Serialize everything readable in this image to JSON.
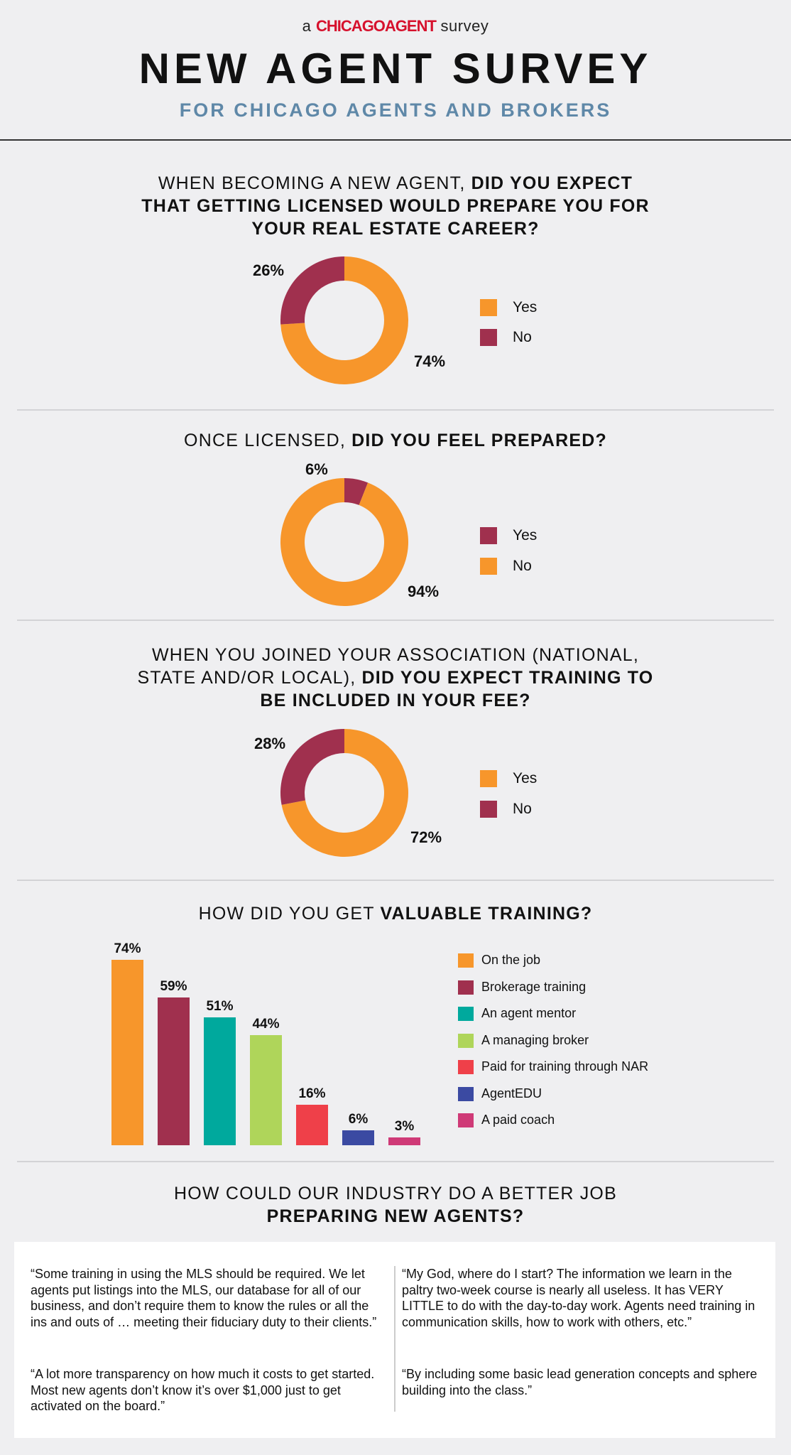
{
  "header": {
    "tagline_pre": "a",
    "brand": "CHICAGOAGENT",
    "tagline_post": "survey",
    "title": "NEW AGENT SURVEY",
    "subtitle": "FOR CHICAGO AGENTS AND BROKERS"
  },
  "questions": [
    {
      "line1_normal": "WHEN BECOMING A NEW AGENT, ",
      "line1_bold": "DID YOU EXPECT",
      "line2_bold": "THAT GETTING LICENSED WOULD PREPARE YOU FOR",
      "line3_bold": "YOUR REAL ESTATE CAREER?"
    },
    {
      "line1_normal": "ONCE LICENSED, ",
      "line1_bold": "DID YOU FEEL PREPARED?"
    },
    {
      "line1_normal": "WHEN YOU JOINED YOUR ASSOCIATION (NATIONAL,",
      "line2_normal": "STATE AND/OR LOCAL), ",
      "line2_bold": "DID YOU EXPECT TRAINING TO",
      "line3_bold": "BE INCLUDED IN YOUR FEE?"
    },
    {
      "line1_normal": "HOW DID YOU GET ",
      "line1_bold": "VALUABLE TRAINING?"
    },
    {
      "line1_normal": "HOW COULD OUR INDUSTRY DO A BETTER JOB",
      "line2_bold": "PREPARING NEW AGENTS?"
    }
  ],
  "colors": {
    "orange": "#f7962b",
    "maroon": "#a0304e",
    "teal": "#00a99d",
    "lime": "#afd55a",
    "red": "#ef4049",
    "navy": "#3b4aa2",
    "magenta": "#cf3a77"
  },
  "chart_data": [
    {
      "type": "pie",
      "donut": true,
      "labels": [
        "Yes",
        "No"
      ],
      "values": [
        74,
        26
      ],
      "value_labels": [
        "74%",
        "26%"
      ],
      "colors": [
        "#f7962b",
        "#a0304e"
      ],
      "legend": "right"
    },
    {
      "type": "pie",
      "donut": true,
      "labels": [
        "Yes",
        "No"
      ],
      "values": [
        6,
        94
      ],
      "value_labels": [
        "6%",
        "94%"
      ],
      "colors": [
        "#a0304e",
        "#f7962b"
      ],
      "legend": "right"
    },
    {
      "type": "pie",
      "donut": true,
      "labels": [
        "Yes",
        "No"
      ],
      "values": [
        72,
        28
      ],
      "value_labels": [
        "72%",
        "28%"
      ],
      "colors": [
        "#f7962b",
        "#a0304e"
      ],
      "legend": "right"
    },
    {
      "type": "bar",
      "categories": [
        "On the job",
        "Brokerage training",
        "An agent mentor",
        "A managing broker",
        "Paid for training through NAR",
        "AgentEDU",
        "A paid coach"
      ],
      "values": [
        74,
        59,
        51,
        44,
        16,
        6,
        3
      ],
      "value_labels": [
        "74%",
        "59%",
        "51%",
        "44%",
        "16%",
        "6%",
        "3%"
      ],
      "colors": [
        "#f7962b",
        "#a0304e",
        "#00a99d",
        "#afd55a",
        "#ef4049",
        "#3b4aa2",
        "#cf3a77"
      ],
      "ylim": [
        0,
        100
      ],
      "grid": false,
      "legend": "right"
    }
  ],
  "quotes": [
    "“Some training in using the MLS should be required. We let agents put listings into the MLS, our database for all of our business, and don’t require them to know the rules or all the ins and outs of … meeting their fiduciary duty to their clients.”",
    "“A lot more transparency on how much it costs to get started. Most new agents don’t know it’s over $1,000 just to get activated on the board.”",
    "“My God, where do I start? The information we learn in the paltry two-week course is nearly all useless. It has VERY LITTLE to do with the day-to-day work. Agents need training in communication skills, how to work with others, etc.”",
    "“By including some basic lead generation concepts and sphere building into the class.”"
  ]
}
